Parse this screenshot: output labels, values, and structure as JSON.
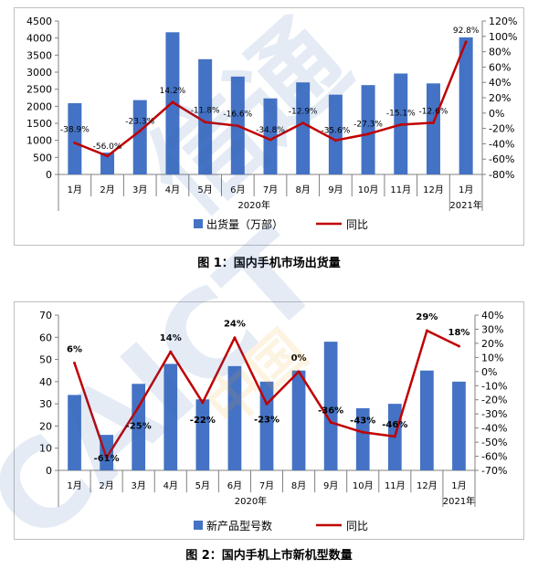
{
  "colors": {
    "bar": "#4472C4",
    "line": "#C00000",
    "watermark": "#3B6FB6",
    "watermark_accent": "#F5A623"
  },
  "charts": [
    {
      "caption": "图 1：国内手机市场出货量",
      "year_labels": [
        "2020年",
        "2021年"
      ],
      "legend": {
        "bar": "出货量（万部）",
        "line": "同比"
      }
    },
    {
      "caption": "图 2：国内手机上市新机型数量",
      "year_labels": [
        "2020年",
        "2021年"
      ],
      "legend": {
        "bar": "新产品型号数",
        "line": "同比"
      }
    }
  ],
  "chart_data": [
    {
      "type": "bar",
      "title": "",
      "categories": [
        "1月",
        "2月",
        "3月",
        "4月",
        "5月",
        "6月",
        "7月",
        "8月",
        "9月",
        "10月",
        "11月",
        "12月",
        "1月"
      ],
      "series": [
        {
          "name": "出货量（万部）",
          "type": "bar",
          "axis": "left",
          "values": [
            2090,
            640,
            2180,
            4170,
            3380,
            2870,
            2230,
            2700,
            2340,
            2620,
            2960,
            2670,
            4020
          ]
        },
        {
          "name": "同比",
          "type": "line",
          "axis": "right",
          "values": [
            -38.9,
            -56.0,
            -23.3,
            14.2,
            -11.8,
            -16.6,
            -34.8,
            -12.9,
            -35.6,
            -27.3,
            -15.1,
            -12.6,
            92.8
          ],
          "labels": [
            "-38.9%",
            "-56.0%",
            "-23.3%",
            "14.2%",
            "-11.8%",
            "-16.6%",
            "-34.8%",
            "-12.9%",
            "-35.6%",
            "-27.3%",
            "-15.1%",
            "-12.6%",
            "92.8%"
          ]
        }
      ],
      "left_axis": {
        "ylim": [
          0,
          4500
        ],
        "ticks": [
          "0",
          "500",
          "1000",
          "1500",
          "2000",
          "2500",
          "3000",
          "3500",
          "4000",
          "4500"
        ]
      },
      "right_axis": {
        "ylim": [
          -80,
          120
        ],
        "ticks": [
          "-80%",
          "-60%",
          "-40%",
          "-20%",
          "0%",
          "20%",
          "40%",
          "60%",
          "80%",
          "100%",
          "120%"
        ]
      },
      "grid": false,
      "legend_position": "bottom"
    },
    {
      "type": "bar",
      "title": "",
      "categories": [
        "1月",
        "2月",
        "3月",
        "4月",
        "5月",
        "6月",
        "7月",
        "8月",
        "9月",
        "10月",
        "11月",
        "12月",
        "1月"
      ],
      "series": [
        {
          "name": "新产品型号数",
          "type": "bar",
          "axis": "left",
          "values": [
            34,
            16,
            39,
            48,
            32,
            47,
            40,
            45,
            58,
            28,
            30,
            45,
            40
          ]
        },
        {
          "name": "同比",
          "type": "line",
          "axis": "right",
          "values": [
            6,
            -61,
            -25,
            14,
            -22,
            24,
            -23,
            0,
            -36,
            -43,
            -46,
            29,
            18
          ],
          "labels": [
            "6%",
            "-61%",
            "-25%",
            "14%",
            "-22%",
            "24%",
            "-23%",
            "0%",
            "-36%",
            "-43%",
            "-46%",
            "29%",
            "18%"
          ]
        }
      ],
      "left_axis": {
        "ylim": [
          0,
          70
        ],
        "ticks": [
          "0",
          "10",
          "20",
          "30",
          "40",
          "50",
          "60",
          "70"
        ]
      },
      "right_axis": {
        "ylim": [
          -70,
          40
        ],
        "ticks": [
          "-70%",
          "-60%",
          "-50%",
          "-40%",
          "-30%",
          "-20%",
          "-10%",
          "0%",
          "10%",
          "20%",
          "30%",
          "40%"
        ]
      },
      "grid": false,
      "legend_position": "bottom"
    }
  ]
}
